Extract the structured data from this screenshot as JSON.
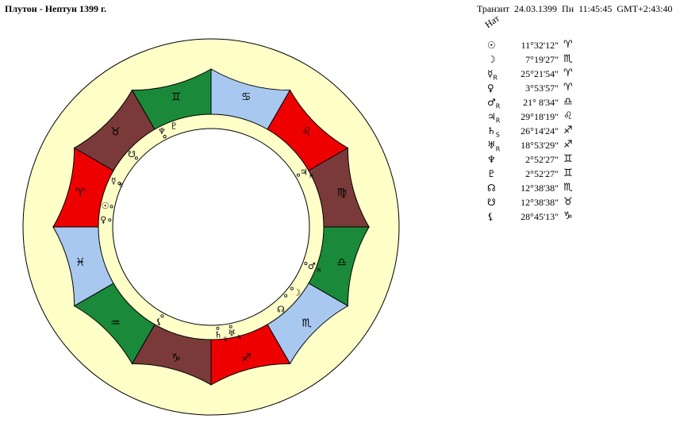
{
  "header": {
    "title": "Плутон - Нептун 1399 г.",
    "transit_label": "Транзит",
    "transit_date": "24.03.1399",
    "transit_day": "Пн",
    "transit_time": "11:45:45",
    "transit_gmt": "GMT+2:43:40"
  },
  "nat_label": "Нат",
  "colors": {
    "outer_ring": "#ffffc8",
    "inner_ring": "#ffffc8",
    "fire": "#ee0000",
    "earth": "#7b3a3a",
    "air": "#a8c8f0",
    "water": "#1a8a3a"
  },
  "zodiac": [
    {
      "sign": "Овен",
      "glyph": "♈",
      "element": "fire"
    },
    {
      "sign": "Телец",
      "glyph": "♉",
      "element": "earth"
    },
    {
      "sign": "Близнецы",
      "glyph": "♊",
      "element": "water"
    },
    {
      "sign": "Рак",
      "glyph": "♋",
      "element": "air"
    },
    {
      "sign": "Лев",
      "glyph": "♌",
      "element": "fire"
    },
    {
      "sign": "Дева",
      "glyph": "♍",
      "element": "earth"
    },
    {
      "sign": "Весы",
      "glyph": "♎",
      "element": "water"
    },
    {
      "sign": "Скорпион",
      "glyph": "♏",
      "element": "air"
    },
    {
      "sign": "Стрелец",
      "glyph": "♐",
      "element": "fire"
    },
    {
      "sign": "Козерог",
      "glyph": "♑",
      "element": "earth"
    },
    {
      "sign": "Водолей",
      "glyph": "♒",
      "element": "water"
    },
    {
      "sign": "Рыбы",
      "glyph": "♓",
      "element": "air"
    }
  ],
  "planets": [
    {
      "name": "sun",
      "glyph": "☉",
      "retro": "",
      "value": "11°32'12\"",
      "sign_glyph": "♈",
      "longitude": 11.54
    },
    {
      "name": "moon",
      "glyph": "☽",
      "retro": "",
      "value": "7°19'27\"",
      "sign_glyph": "♏",
      "longitude": 217.32
    },
    {
      "name": "mercury",
      "glyph": "☿",
      "retro": "R",
      "value": "25°21'54\"",
      "sign_glyph": "♈",
      "longitude": 25.37
    },
    {
      "name": "venus",
      "glyph": "♀",
      "retro": "",
      "value": "3°53'57\"",
      "sign_glyph": "♈",
      "longitude": 3.9
    },
    {
      "name": "mars",
      "glyph": "♂",
      "retro": "R",
      "value": "21° 8'34\"",
      "sign_glyph": "♎",
      "longitude": 201.14
    },
    {
      "name": "jupiter",
      "glyph": "♃",
      "retro": "R",
      "value": "29°18'19\"",
      "sign_glyph": "♌",
      "longitude": 149.31
    },
    {
      "name": "saturn",
      "glyph": "♄",
      "retro": "S",
      "value": "26°14'24\"",
      "sign_glyph": "♐",
      "longitude": 266.24
    },
    {
      "name": "uranus",
      "glyph": "♅",
      "retro": "R",
      "value": "18°53'29\"",
      "sign_glyph": "♐",
      "longitude": 258.89
    },
    {
      "name": "neptune",
      "glyph": "♆",
      "retro": "",
      "value": "2°52'27\"",
      "sign_glyph": "♊",
      "longitude": 62.87
    },
    {
      "name": "pluto",
      "glyph": "♇",
      "retro": "",
      "value": "2°52'27\"",
      "sign_glyph": "♊",
      "longitude": 62.87
    },
    {
      "name": "north-node",
      "glyph": "☊",
      "retro": "",
      "value": "12°38'38\"",
      "sign_glyph": "♏",
      "longitude": 222.64
    },
    {
      "name": "south-node",
      "glyph": "☋",
      "retro": "",
      "value": "12°38'38\"",
      "sign_glyph": "♉",
      "longitude": 42.64
    },
    {
      "name": "lilith",
      "glyph": "⚸",
      "retro": "",
      "value": "28°45'13\"",
      "sign_glyph": "♑",
      "longitude": 298.75
    }
  ]
}
